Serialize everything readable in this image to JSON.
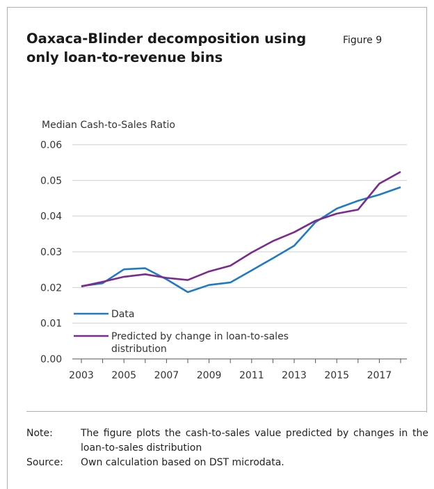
{
  "figure": {
    "title": "Oaxaca-Blinder decomposition using only loan-to-revenue bins",
    "label": "Figure 9"
  },
  "chart_data": {
    "type": "line",
    "ylabel": "Median Cash-to-Sales Ratio",
    "ylim": [
      0,
      0.06
    ],
    "yticks": [
      "0.00",
      "0.01",
      "0.02",
      "0.03",
      "0.04",
      "0.05",
      "0.06"
    ],
    "xlim": [
      2003,
      2018
    ],
    "xticks": [
      "2003",
      "2005",
      "2007",
      "2009",
      "2011",
      "2013",
      "2015",
      "2017"
    ],
    "grid": "horizontal",
    "legend_position": "bottom-left",
    "x": [
      2003,
      2004,
      2005,
      2006,
      2007,
      2008,
      2009,
      2010,
      2011,
      2012,
      2013,
      2014,
      2015,
      2016,
      2017,
      2018
    ],
    "series": [
      {
        "name": "Data",
        "color": "#1f7ac4",
        "values": [
          0.0204,
          0.0212,
          0.0251,
          0.0254,
          0.0223,
          0.0187,
          0.0207,
          0.0214,
          0.0248,
          0.0282,
          0.0317,
          0.0383,
          0.0421,
          0.0443,
          0.046,
          0.0481
        ]
      },
      {
        "name": "Predicted by change in loan-to-sales distribution",
        "color": "#7b2a8e",
        "values": [
          0.0203,
          0.0216,
          0.023,
          0.0237,
          0.0227,
          0.0221,
          0.0245,
          0.0261,
          0.0298,
          0.033,
          0.0355,
          0.0387,
          0.0407,
          0.0418,
          0.0491,
          0.0524
        ]
      }
    ]
  },
  "notes": {
    "note_key": "Note:",
    "note_text": "The figure plots the cash-to-sales value predicted by changes in the loan-to-sales distribution",
    "source_key": "Source:",
    "source_text": "Own calculation based on DST microdata."
  }
}
